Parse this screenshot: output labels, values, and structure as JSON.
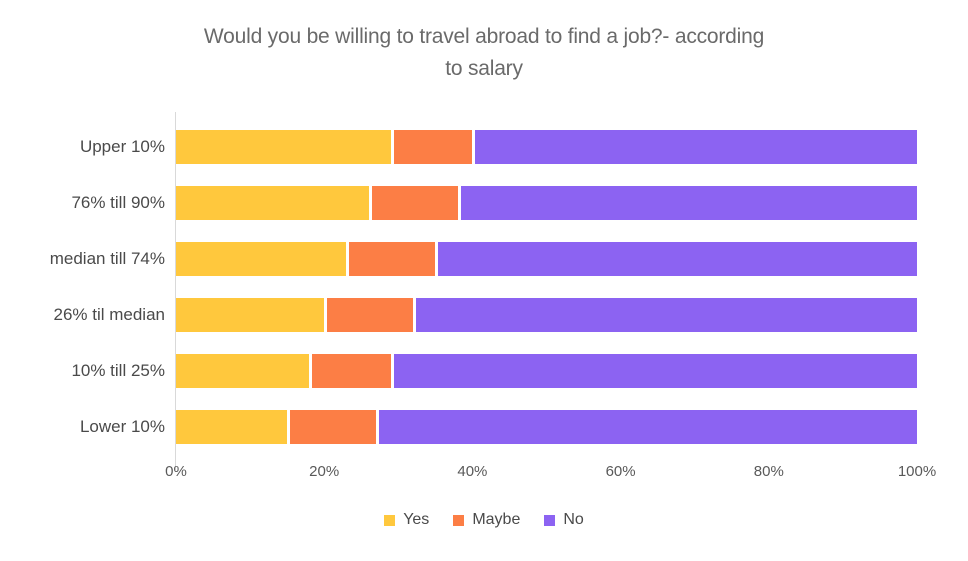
{
  "title": "Would you be willing to travel abroad to find a job?- according\nto salary",
  "chart_data": {
    "type": "bar",
    "orientation": "horizontal",
    "stacked": true,
    "stacked_percent": true,
    "title": "Would you be willing to travel abroad to find a job?- according to salary",
    "categories": [
      "Upper 10%",
      "76% till 90%",
      "median till 74%",
      "26% til median",
      "10% till 25%",
      "Lower 10%"
    ],
    "series": [
      {
        "name": "Yes",
        "color": "#FFC83D",
        "values": [
          29,
          26,
          23,
          20,
          18,
          15
        ]
      },
      {
        "name": "Maybe",
        "color": "#FC7E45",
        "values": [
          11,
          12,
          12,
          12,
          11,
          12
        ]
      },
      {
        "name": "No",
        "color": "#8C63F2",
        "values": [
          60,
          62,
          65,
          68,
          71,
          73
        ]
      }
    ],
    "xlabel": "",
    "ylabel": "",
    "x_ticks": [
      "0%",
      "20%",
      "40%",
      "60%",
      "80%",
      "100%"
    ],
    "xlim": [
      0,
      100
    ],
    "grid": false,
    "legend_position": "bottom",
    "axis_line_color": "#d9d9d9",
    "title_color": "#6a6a6a",
    "label_color": "#4a4a4a",
    "tick_color": "#595959"
  }
}
